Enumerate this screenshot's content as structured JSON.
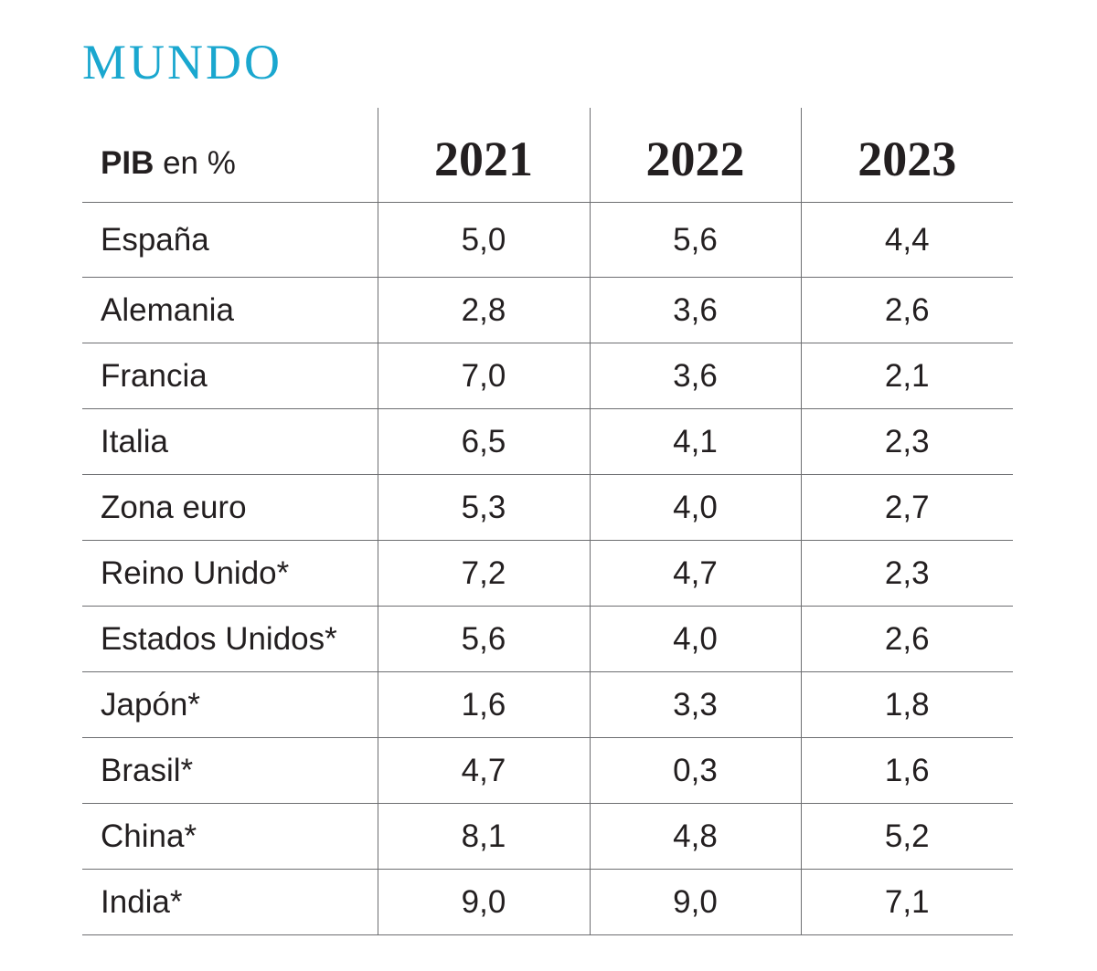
{
  "title": "MUNDO",
  "chart_data": {
    "type": "table",
    "header": {
      "label_bold": "PIB",
      "label_rest": " en %",
      "columns": [
        "2021",
        "2022",
        "2023"
      ]
    },
    "rows": [
      {
        "country": "España",
        "values": [
          "5,0",
          "5,6",
          "4,4"
        ]
      },
      {
        "country": "Alemania",
        "values": [
          "2,8",
          "3,6",
          "2,6"
        ]
      },
      {
        "country": "Francia",
        "values": [
          "7,0",
          "3,6",
          "2,1"
        ]
      },
      {
        "country": "Italia",
        "values": [
          "6,5",
          "4,1",
          "2,3"
        ]
      },
      {
        "country": "Zona euro",
        "values": [
          "5,3",
          "4,0",
          "2,7"
        ]
      },
      {
        "country": "Reino Unido*",
        "values": [
          "7,2",
          "4,7",
          "2,3"
        ]
      },
      {
        "country": "Estados Unidos*",
        "values": [
          "5,6",
          "4,0",
          "2,6"
        ]
      },
      {
        "country": "Japón*",
        "values": [
          "1,6",
          "3,3",
          "1,8"
        ]
      },
      {
        "country": "Brasil*",
        "values": [
          "4,7",
          "0,3",
          "1,6"
        ]
      },
      {
        "country": "China*",
        "values": [
          "8,1",
          "4,8",
          "5,2"
        ]
      },
      {
        "country": "India*",
        "values": [
          "9,0",
          "9,0",
          "7,1"
        ]
      }
    ]
  },
  "colors": {
    "title": "#1aa7cf",
    "text": "#231f20",
    "rule": "#6d6e71"
  }
}
